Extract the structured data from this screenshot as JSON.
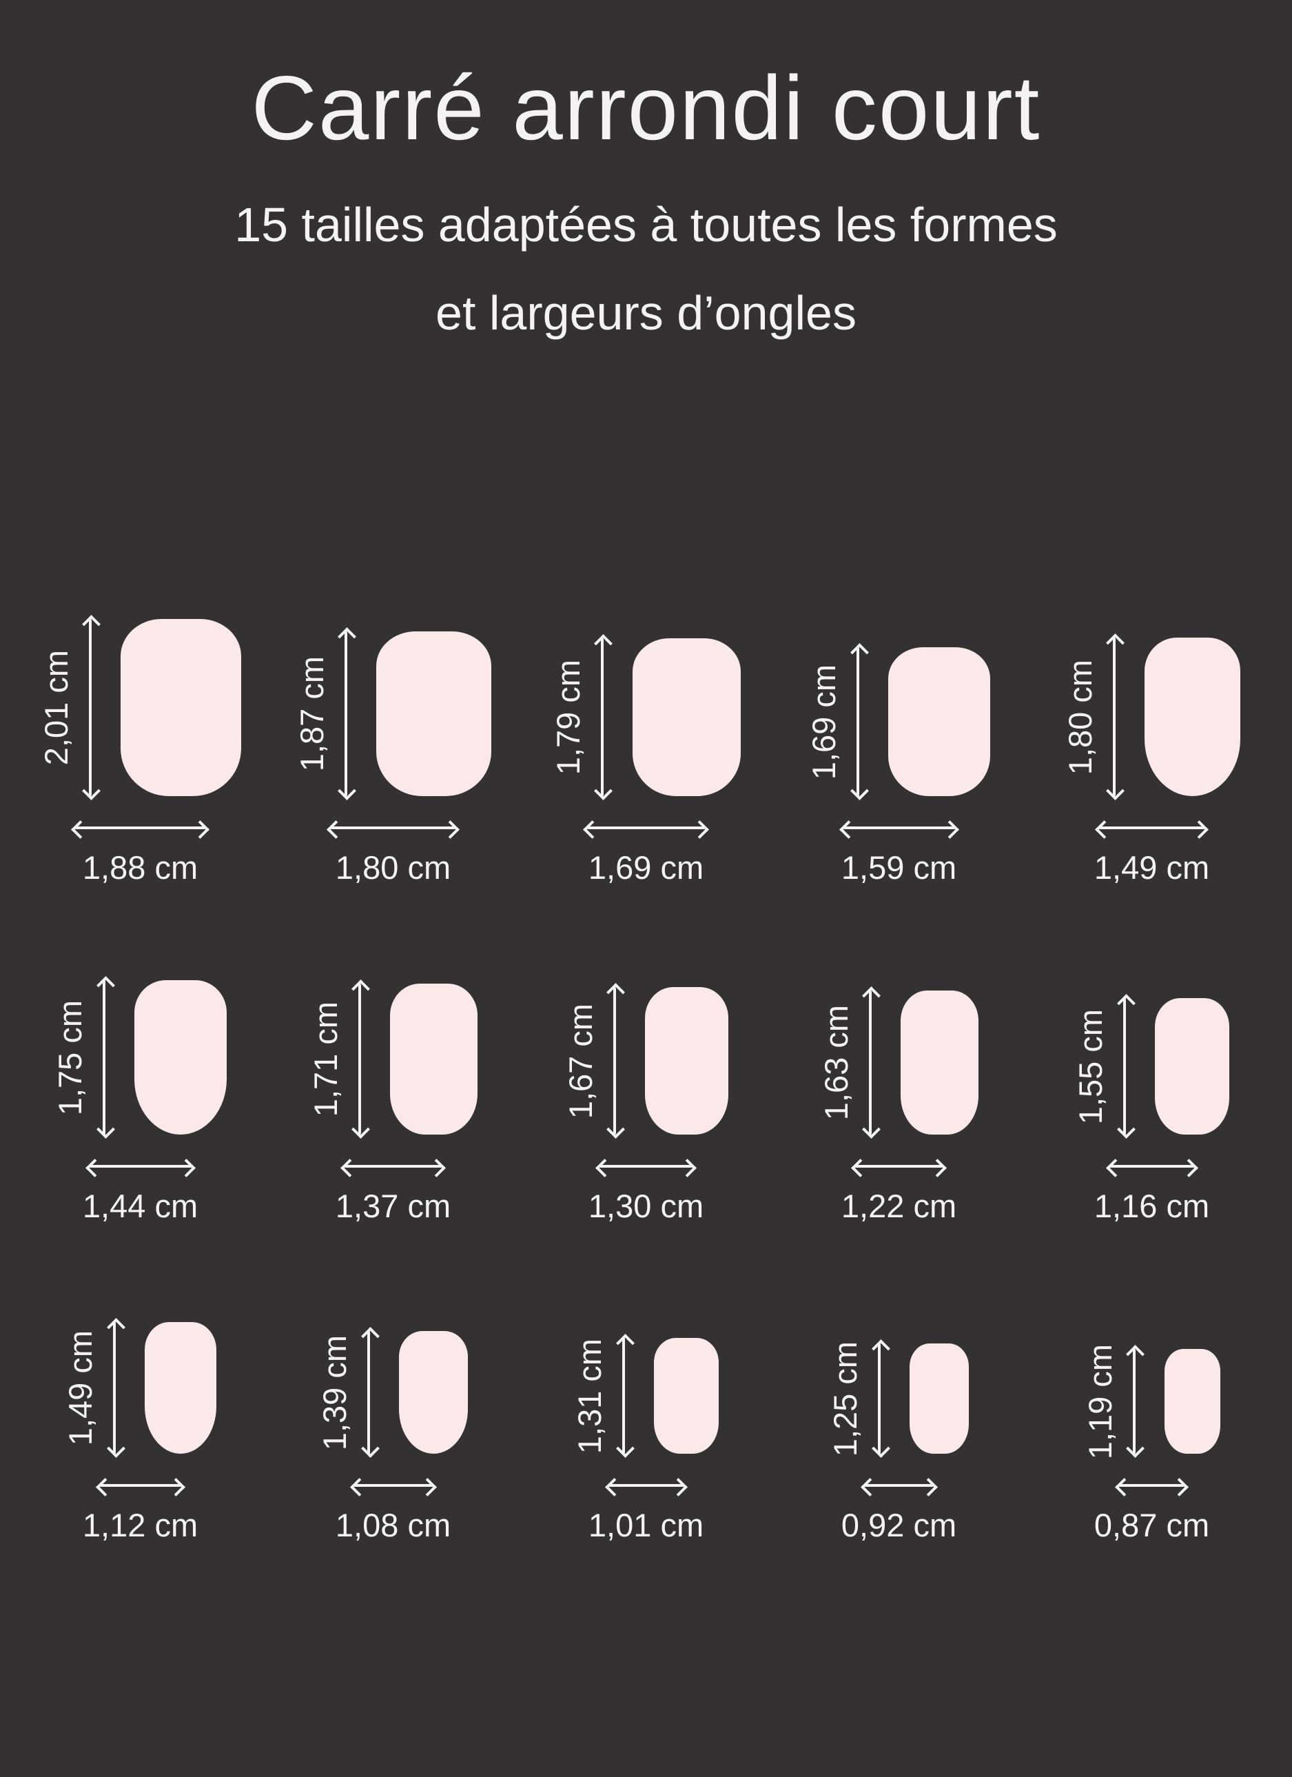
{
  "header": {
    "title": "Carré arrondi court",
    "subtitle_line1": "15 tailles adaptées à toutes les formes",
    "subtitle_line2": "et largeurs d’ongles"
  },
  "unit": "cm",
  "colors": {
    "background": "#333132",
    "nail": "#fbe8ea",
    "text": "#f4f2f3"
  },
  "rows": [
    {
      "nails": [
        {
          "height_label": "2,01 cm",
          "width_label": "1,88 cm",
          "height_cm": 2.01,
          "width_cm": 1.88,
          "shape": "square"
        },
        {
          "height_label": "1,87 cm",
          "width_label": "1,80 cm",
          "height_cm": 1.87,
          "width_cm": 1.8,
          "shape": "square"
        },
        {
          "height_label": "1,79 cm",
          "width_label": "1,69 cm",
          "height_cm": 1.79,
          "width_cm": 1.69,
          "shape": "square"
        },
        {
          "height_label": "1,69 cm",
          "width_label": "1,59 cm",
          "height_cm": 1.69,
          "width_cm": 1.59,
          "shape": "square"
        },
        {
          "height_label": "1,80 cm",
          "width_label": "1,49 cm",
          "height_cm": 1.8,
          "width_cm": 1.49,
          "shape": "oval"
        }
      ]
    },
    {
      "nails": [
        {
          "height_label": "1,75 cm",
          "width_label": "1,44 cm",
          "height_cm": 1.75,
          "width_cm": 1.44,
          "shape": "oval"
        },
        {
          "height_label": "1,71 cm",
          "width_label": "1,37 cm",
          "height_cm": 1.71,
          "width_cm": 1.37,
          "shape": "square"
        },
        {
          "height_label": "1,67 cm",
          "width_label": "1,30 cm",
          "height_cm": 1.67,
          "width_cm": 1.3,
          "shape": "square"
        },
        {
          "height_label": "1,63 cm",
          "width_label": "1,22 cm",
          "height_cm": 1.63,
          "width_cm": 1.22,
          "shape": "square"
        },
        {
          "height_label": "1,55 cm",
          "width_label": "1,16 cm",
          "height_cm": 1.55,
          "width_cm": 1.16,
          "shape": "square"
        }
      ]
    },
    {
      "nails": [
        {
          "height_label": "1,49 cm",
          "width_label": "1,12 cm",
          "height_cm": 1.49,
          "width_cm": 1.12,
          "shape": "oval"
        },
        {
          "height_label": "1,39 cm",
          "width_label": "1,08 cm",
          "height_cm": 1.39,
          "width_cm": 1.08,
          "shape": "oval"
        },
        {
          "height_label": "1,31 cm",
          "width_label": "1,01 cm",
          "height_cm": 1.31,
          "width_cm": 1.01,
          "shape": "square"
        },
        {
          "height_label": "1,25 cm",
          "width_label": "0,92 cm",
          "height_cm": 1.25,
          "width_cm": 0.92,
          "shape": "square"
        },
        {
          "height_label": "1,19 cm",
          "width_label": "0,87 cm",
          "height_cm": 1.19,
          "width_cm": 0.87,
          "shape": "square"
        }
      ]
    }
  ]
}
